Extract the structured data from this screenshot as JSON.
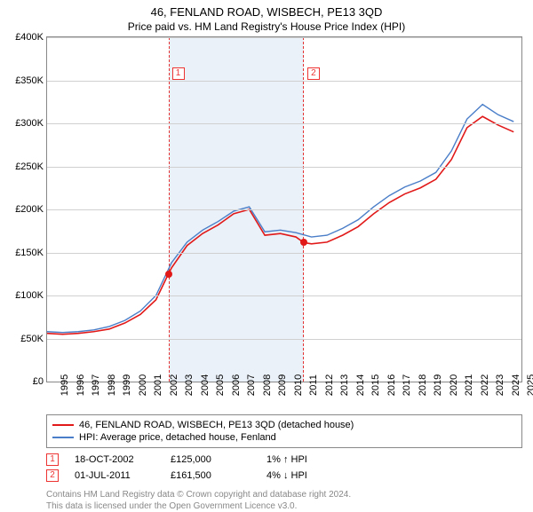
{
  "title": "46, FENLAND ROAD, WISBECH, PE13 3QD",
  "subtitle": "Price paid vs. HM Land Registry's House Price Index (HPI)",
  "chart": {
    "type": "line",
    "background_color": "#ffffff",
    "grid_color": "#d0d0d0",
    "shade_color": "#eaf1f8",
    "dash_color": "#e33333",
    "xlim": [
      1995,
      2025.5
    ],
    "ylim": [
      0,
      400000
    ],
    "ytick_step": 50000,
    "yticks": [
      "£0",
      "£50K",
      "£100K",
      "£150K",
      "£200K",
      "£250K",
      "£300K",
      "£350K",
      "£400K"
    ],
    "xticks": [
      1995,
      1996,
      1997,
      1998,
      1999,
      2000,
      2001,
      2002,
      2003,
      2004,
      2005,
      2006,
      2007,
      2008,
      2009,
      2010,
      2011,
      2012,
      2013,
      2014,
      2015,
      2016,
      2017,
      2018,
      2019,
      2020,
      2021,
      2022,
      2023,
      2024,
      2025
    ],
    "shade_range": [
      2002.8,
      2011.5
    ],
    "series": [
      {
        "name": "46, FENLAND ROAD, WISBECH, PE13 3QD (detached house)",
        "color": "#e11919",
        "width": 1.6,
        "data": [
          [
            1995,
            56000
          ],
          [
            1996,
            55000
          ],
          [
            1997,
            56000
          ],
          [
            1998,
            58000
          ],
          [
            1999,
            61000
          ],
          [
            2000,
            68000
          ],
          [
            2001,
            78000
          ],
          [
            2002,
            95000
          ],
          [
            2002.8,
            125000
          ],
          [
            2003,
            132000
          ],
          [
            2004,
            158000
          ],
          [
            2005,
            172000
          ],
          [
            2006,
            182000
          ],
          [
            2007,
            195000
          ],
          [
            2008,
            200000
          ],
          [
            2009,
            170000
          ],
          [
            2010,
            172000
          ],
          [
            2011,
            168000
          ],
          [
            2011.5,
            161500
          ],
          [
            2012,
            160000
          ],
          [
            2013,
            162000
          ],
          [
            2014,
            170000
          ],
          [
            2015,
            180000
          ],
          [
            2016,
            195000
          ],
          [
            2017,
            208000
          ],
          [
            2018,
            218000
          ],
          [
            2019,
            225000
          ],
          [
            2020,
            235000
          ],
          [
            2021,
            258000
          ],
          [
            2022,
            295000
          ],
          [
            2023,
            308000
          ],
          [
            2024,
            298000
          ],
          [
            2025,
            290000
          ]
        ]
      },
      {
        "name": "HPI: Average price, detached house, Fenland",
        "color": "#4a7ec8",
        "width": 1.4,
        "data": [
          [
            1995,
            58000
          ],
          [
            1996,
            57000
          ],
          [
            1997,
            58000
          ],
          [
            1998,
            60000
          ],
          [
            1999,
            64000
          ],
          [
            2000,
            71000
          ],
          [
            2001,
            82000
          ],
          [
            2002,
            100000
          ],
          [
            2003,
            138000
          ],
          [
            2004,
            162000
          ],
          [
            2005,
            176000
          ],
          [
            2006,
            186000
          ],
          [
            2007,
            198000
          ],
          [
            2008,
            203000
          ],
          [
            2009,
            174000
          ],
          [
            2010,
            176000
          ],
          [
            2011,
            173000
          ],
          [
            2012,
            168000
          ],
          [
            2013,
            170000
          ],
          [
            2014,
            178000
          ],
          [
            2015,
            188000
          ],
          [
            2016,
            203000
          ],
          [
            2017,
            216000
          ],
          [
            2018,
            226000
          ],
          [
            2019,
            233000
          ],
          [
            2020,
            243000
          ],
          [
            2021,
            268000
          ],
          [
            2022,
            305000
          ],
          [
            2023,
            322000
          ],
          [
            2024,
            310000
          ],
          [
            2025,
            302000
          ]
        ]
      }
    ],
    "sale_markers": [
      {
        "n": "1",
        "x": 2002.8,
        "y": 125000,
        "badge_y": 365000
      },
      {
        "n": "2",
        "x": 2011.5,
        "y": 161500,
        "badge_y": 365000
      }
    ],
    "marker_color": "#e11919"
  },
  "legend": {
    "items": [
      {
        "color": "#e11919",
        "label": "46, FENLAND ROAD, WISBECH, PE13 3QD (detached house)"
      },
      {
        "color": "#4a7ec8",
        "label": "HPI: Average price, detached house, Fenland"
      }
    ]
  },
  "sales": [
    {
      "n": "1",
      "date": "18-OCT-2002",
      "price": "£125,000",
      "delta": "1% ↑ HPI"
    },
    {
      "n": "2",
      "date": "01-JUL-2011",
      "price": "£161,500",
      "delta": "4% ↓ HPI"
    }
  ],
  "footer": {
    "line1": "Contains HM Land Registry data © Crown copyright and database right 2024.",
    "line2": "This data is licensed under the Open Government Licence v3.0."
  }
}
